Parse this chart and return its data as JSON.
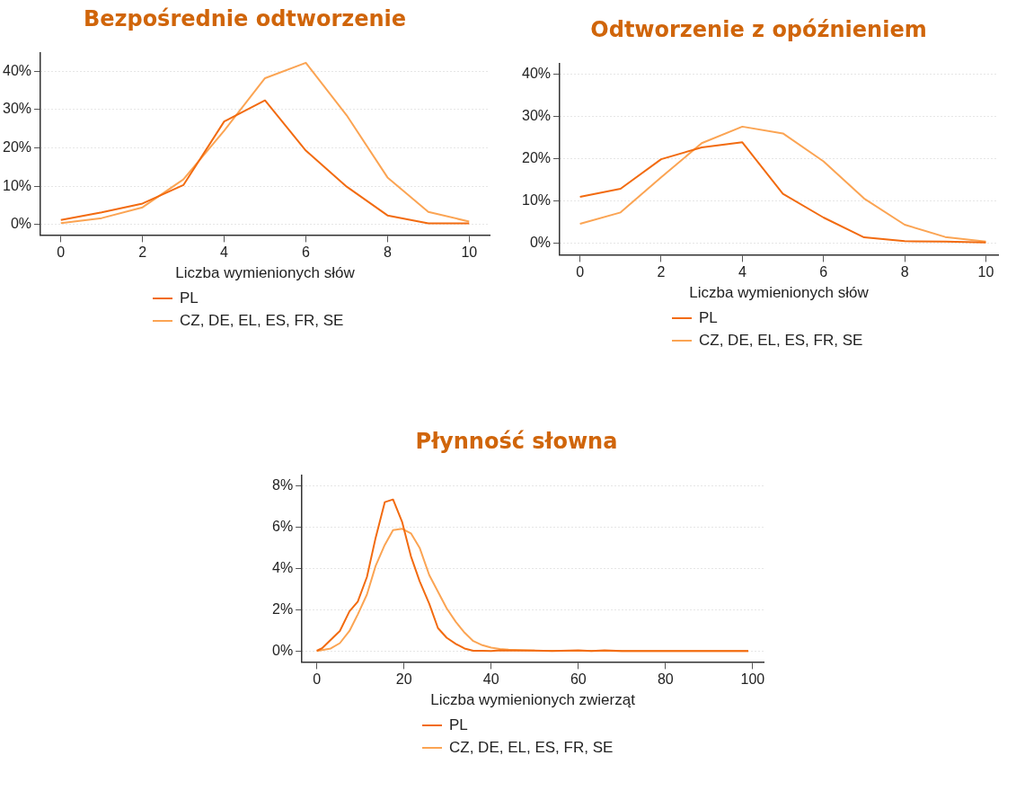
{
  "chart_data": [
    {
      "type": "line",
      "title": "Bezpośrednie odtworzenie",
      "xlabel": "Liczba wymienionych słów",
      "x": [
        0,
        1,
        2,
        3,
        4,
        5,
        6,
        7,
        8,
        9,
        10
      ],
      "xlim": [
        -0.5,
        10.5
      ],
      "xticks": [
        0,
        2,
        4,
        6,
        8,
        10
      ],
      "ylim": [
        -2.7,
        44.8
      ],
      "yticks": [
        {
          "value": 0,
          "label": "0%"
        },
        {
          "value": 10,
          "label": "10%"
        },
        {
          "value": 20,
          "label": "20%"
        },
        {
          "value": 30,
          "label": "30%"
        },
        {
          "value": 40,
          "label": "40%"
        }
      ],
      "grid": "y",
      "legend": "bottom",
      "series": [
        {
          "name": "PL",
          "color": "#f26b10",
          "values": [
            1.2,
            3.2,
            5.5,
            10.3,
            26.9,
            32.4,
            19.3,
            9.9,
            2.4,
            0.3,
            0.3
          ]
        },
        {
          "name": "CZ, DE, EL, ES, FR, SE",
          "color": "#fba453",
          "values": [
            0.4,
            1.7,
            4.5,
            11.8,
            24.5,
            38.2,
            42.2,
            28.5,
            12.3,
            3.3,
            0.8
          ]
        }
      ]
    },
    {
      "type": "line",
      "title": "Odtworzenie z opóźnieniem",
      "xlabel": "Liczba wymienionych słów",
      "x": [
        0,
        1,
        2,
        3,
        4,
        5,
        6,
        7,
        8,
        9,
        10
      ],
      "xlim": [
        -0.5,
        10.3
      ],
      "xticks": [
        0,
        2,
        4,
        6,
        8,
        10
      ],
      "ylim": [
        -2.7,
        42.5
      ],
      "yticks": [
        {
          "value": 0,
          "label": "0%"
        },
        {
          "value": 10,
          "label": "10%"
        },
        {
          "value": 20,
          "label": "20%"
        },
        {
          "value": 30,
          "label": "30%"
        },
        {
          "value": 40,
          "label": "40%"
        }
      ],
      "grid": "y",
      "legend": "bottom",
      "series": [
        {
          "name": "PL",
          "color": "#f26b10",
          "values": [
            11.0,
            12.9,
            19.9,
            22.7,
            23.9,
            11.7,
            6.1,
            1.4,
            0.5,
            0.4,
            0.2
          ]
        },
        {
          "name": "CZ, DE, EL, ES, FR, SE",
          "color": "#fba453",
          "values": [
            4.6,
            7.3,
            15.6,
            23.7,
            27.6,
            26.0,
            19.4,
            10.6,
            4.4,
            1.5,
            0.4
          ]
        }
      ]
    },
    {
      "type": "line",
      "title": "Płynność słowna",
      "xlabel": "Liczba wymienionych zwierząt",
      "xlim": [
        -3.4,
        102.5
      ],
      "xticks": [
        0,
        20,
        40,
        60,
        80,
        100
      ],
      "ylim": [
        -0.53,
        8.51
      ],
      "yticks": [
        {
          "value": 0,
          "label": "0%"
        },
        {
          "value": 2,
          "label": "2%"
        },
        {
          "value": 4,
          "label": "4%"
        },
        {
          "value": 6,
          "label": "6%"
        },
        {
          "value": 8,
          "label": "8%"
        }
      ],
      "grid": "y",
      "legend": "bottom",
      "series": [
        {
          "name": "PL",
          "color": "#f26b10",
          "x": [
            0,
            1.2,
            5.3,
            7.5,
            9.4,
            11.5,
            13.5,
            15.6,
            17.5,
            19.6,
            21.6,
            23.6,
            25.8,
            27.8,
            29.8,
            31.9,
            33.9,
            35.9,
            38,
            40,
            42,
            46,
            50,
            54,
            60,
            63,
            66,
            70,
            80,
            90,
            99
          ],
          "values": [
            0.01,
            0.13,
            0.97,
            1.92,
            2.39,
            3.58,
            5.48,
            7.21,
            7.34,
            6.24,
            4.59,
            3.38,
            2.29,
            1.11,
            0.64,
            0.34,
            0.12,
            0.01,
            0.01,
            0,
            0.03,
            0.02,
            0.02,
            0,
            0.03,
            0,
            0.03,
            0,
            0,
            0,
            0
          ]
        },
        {
          "name": "CZ, DE, EL, ES, FR, SE",
          "color": "#fba453",
          "x": [
            0,
            1.2,
            3.2,
            5.3,
            7.5,
            9.4,
            11.5,
            13.5,
            15.6,
            17.5,
            19.6,
            21.6,
            23.6,
            25.8,
            27.8,
            29.8,
            31.9,
            33.9,
            35.9,
            38,
            40,
            42,
            44,
            50,
            60,
            70,
            80,
            90,
            99
          ],
          "values": [
            0,
            0.04,
            0.12,
            0.38,
            0.97,
            1.77,
            2.73,
            4.12,
            5.14,
            5.86,
            5.92,
            5.7,
            5.0,
            3.68,
            2.87,
            2.07,
            1.41,
            0.89,
            0.48,
            0.28,
            0.16,
            0.1,
            0.06,
            0.02,
            0.01,
            0,
            0,
            0,
            0
          ]
        }
      ]
    }
  ]
}
